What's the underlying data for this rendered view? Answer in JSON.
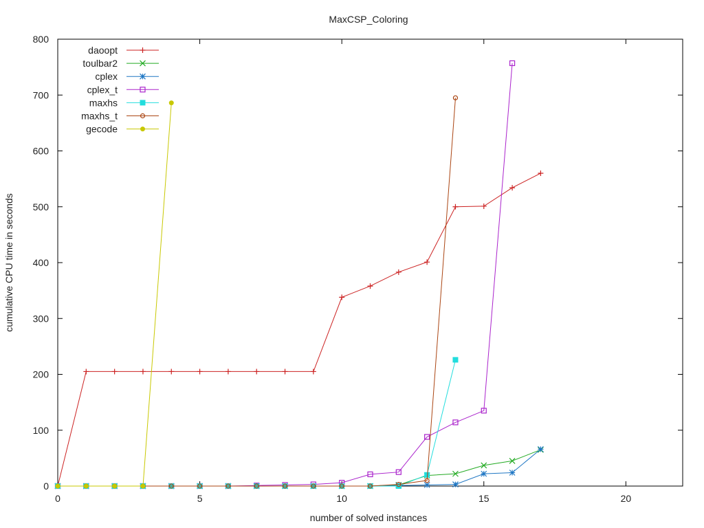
{
  "chart_data": {
    "type": "line",
    "title": "MaxCSP_Coloring",
    "xlabel": "number of solved instances",
    "ylabel": "cumulative CPU time in seconds",
    "xlim": [
      0,
      22
    ],
    "ylim": [
      0,
      800
    ],
    "xticks": [
      0,
      5,
      10,
      15,
      20
    ],
    "yticks": [
      0,
      100,
      200,
      300,
      400,
      500,
      600,
      700,
      800
    ],
    "grid": false,
    "legend_position": "top-left",
    "series": [
      {
        "name": "daoopt",
        "color": "#cc2222",
        "marker": "plus",
        "points": [
          [
            0,
            0
          ],
          [
            1,
            205
          ],
          [
            2,
            205
          ],
          [
            3,
            205
          ],
          [
            4,
            205
          ],
          [
            5,
            205
          ],
          [
            6,
            205
          ],
          [
            7,
            205
          ],
          [
            8,
            205
          ],
          [
            9,
            205
          ],
          [
            10,
            338
          ],
          [
            11,
            358
          ],
          [
            12,
            383
          ],
          [
            13,
            401
          ],
          [
            14,
            500
          ],
          [
            15,
            501
          ],
          [
            16,
            534
          ],
          [
            17,
            560
          ]
        ]
      },
      {
        "name": "toulbar2",
        "color": "#22aa22",
        "marker": "cross",
        "points": [
          [
            0,
            0
          ],
          [
            1,
            0
          ],
          [
            2,
            0
          ],
          [
            3,
            0
          ],
          [
            4,
            0
          ],
          [
            5,
            0
          ],
          [
            6,
            0
          ],
          [
            7,
            0
          ],
          [
            8,
            0
          ],
          [
            9,
            0
          ],
          [
            10,
            0
          ],
          [
            11,
            0
          ],
          [
            12,
            2
          ],
          [
            13,
            19
          ],
          [
            14,
            22
          ],
          [
            15,
            37
          ],
          [
            16,
            45
          ],
          [
            17,
            65
          ]
        ]
      },
      {
        "name": "cplex",
        "color": "#1f77c4",
        "marker": "star",
        "points": [
          [
            0,
            0
          ],
          [
            1,
            0
          ],
          [
            2,
            0
          ],
          [
            3,
            0
          ],
          [
            4,
            0
          ],
          [
            5,
            0
          ],
          [
            6,
            0
          ],
          [
            7,
            0
          ],
          [
            8,
            0
          ],
          [
            9,
            0
          ],
          [
            10,
            0
          ],
          [
            11,
            0
          ],
          [
            12,
            1
          ],
          [
            13,
            2
          ],
          [
            14,
            3
          ],
          [
            15,
            22
          ],
          [
            16,
            24
          ],
          [
            17,
            66
          ]
        ]
      },
      {
        "name": "cplex_t",
        "color": "#aa22cc",
        "marker": "square-open",
        "points": [
          [
            0,
            0
          ],
          [
            1,
            0
          ],
          [
            2,
            0
          ],
          [
            3,
            0
          ],
          [
            4,
            0
          ],
          [
            5,
            0
          ],
          [
            6,
            0
          ],
          [
            7,
            1
          ],
          [
            8,
            2
          ],
          [
            9,
            3
          ],
          [
            10,
            6
          ],
          [
            11,
            21
          ],
          [
            12,
            25
          ],
          [
            13,
            88
          ],
          [
            14,
            114
          ],
          [
            15,
            135
          ],
          [
            16,
            757
          ]
        ]
      },
      {
        "name": "maxhs",
        "color": "#22dddd",
        "marker": "square-filled",
        "points": [
          [
            0,
            0
          ],
          [
            1,
            0
          ],
          [
            2,
            0
          ],
          [
            3,
            0
          ],
          [
            4,
            0
          ],
          [
            5,
            0
          ],
          [
            6,
            0
          ],
          [
            7,
            0
          ],
          [
            8,
            0
          ],
          [
            9,
            0
          ],
          [
            10,
            0
          ],
          [
            11,
            0
          ],
          [
            12,
            0
          ],
          [
            13,
            20
          ],
          [
            14,
            226
          ]
        ]
      },
      {
        "name": "maxhs_t",
        "color": "#aa4411",
        "marker": "circle-open",
        "points": [
          [
            0,
            0
          ],
          [
            1,
            0
          ],
          [
            2,
            0
          ],
          [
            3,
            0
          ],
          [
            4,
            0
          ],
          [
            5,
            0
          ],
          [
            6,
            0
          ],
          [
            7,
            0
          ],
          [
            8,
            0
          ],
          [
            9,
            0
          ],
          [
            10,
            0
          ],
          [
            11,
            0
          ],
          [
            12,
            3
          ],
          [
            13,
            10
          ],
          [
            14,
            695
          ]
        ]
      },
      {
        "name": "gecode",
        "color": "#c8c800",
        "marker": "circle-filled",
        "points": [
          [
            0,
            0
          ],
          [
            1,
            0
          ],
          [
            2,
            0
          ],
          [
            3,
            0
          ],
          [
            4,
            686
          ]
        ]
      }
    ]
  }
}
